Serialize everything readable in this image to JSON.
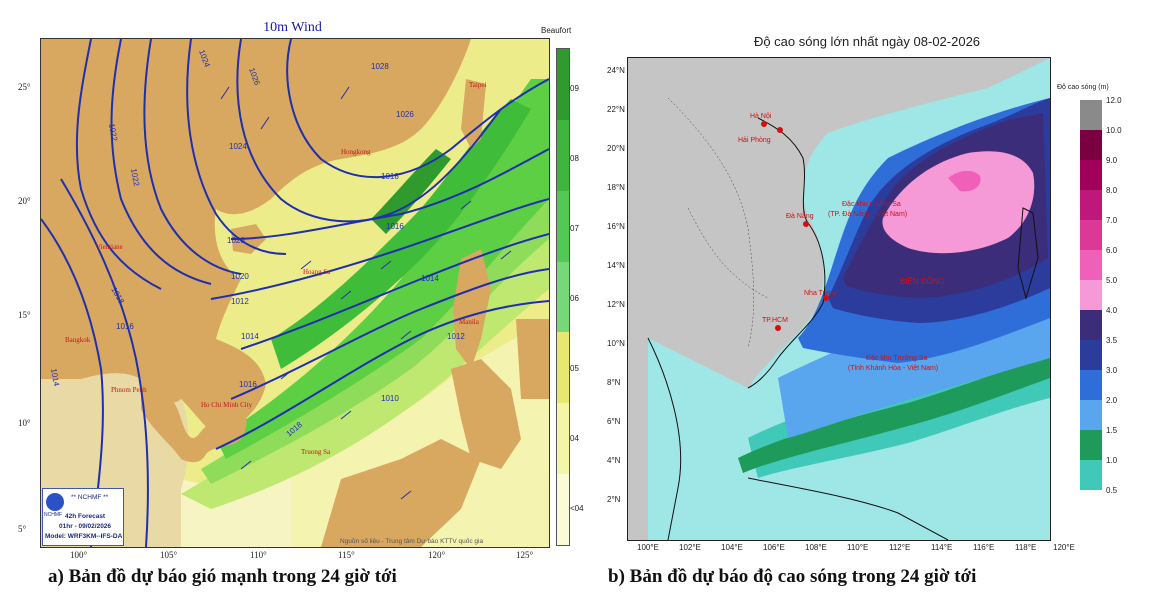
{
  "panel_a": {
    "title": "10m Wind",
    "caption": "a) Bản đồ dự báo gió mạnh trong 24 giờ tới",
    "legend_title": "Beaufort",
    "legend_labels": [
      "09",
      "08",
      "07",
      "06",
      "05",
      "04",
      "<04"
    ],
    "lat_labels": [
      "25°",
      "20°",
      "15°",
      "10°",
      "5°"
    ],
    "lon_labels": [
      "100°",
      "105°",
      "110°",
      "115°",
      "120°",
      "125°"
    ],
    "isobar_labels": [
      "1024",
      "1026",
      "1028",
      "1026",
      "1024",
      "1022",
      "1020",
      "1018",
      "1016",
      "1014",
      "1012",
      "1010",
      "1022",
      "1020",
      "1018",
      "1016",
      "1014",
      "1012",
      "1016",
      "1018",
      "1014"
    ],
    "place_labels": [
      "Hongkong",
      "Hoang Sa",
      "Manila",
      "Truong Sa",
      "Bangkok",
      "Phnom Penh",
      "Ho Chi Minh City",
      "Vientiane",
      "Taipei"
    ],
    "info": {
      "org": "** NCHMF **",
      "forecast": "42h Forecast",
      "time": "01hr - 09/02/2026",
      "model": "Model: WRF3KM--IFS-DA",
      "logo_text": "NCHMF"
    },
    "credit": "Nguồn số liệu - Trung tâm Dự báo KTTV quốc gia",
    "legend_colors": [
      "#2f9b2f",
      "#3fb43f",
      "#54c854",
      "#78d878",
      "#e8e870",
      "#f5f5a8",
      "#fbfbd8"
    ]
  },
  "panel_b": {
    "title": "Độ cao sóng lớn nhất ngày 08-02-2026",
    "caption": "b) Bản đồ dự báo độ cao sóng trong 24 giờ tới",
    "legend_title": "Độ cao sóng (m)",
    "lat_labels": [
      "24°N",
      "22°N",
      "20°N",
      "18°N",
      "16°N",
      "14°N",
      "12°N",
      "10°N",
      "8°N",
      "6°N",
      "4°N",
      "2°N"
    ],
    "lon_labels": [
      "100°E",
      "102°E",
      "104°E",
      "106°E",
      "108°E",
      "110°E",
      "112°E",
      "114°E",
      "116°E",
      "118°E",
      "120°E"
    ],
    "scale_labels": [
      "12.0",
      "10.0",
      "9.0",
      "8.0",
      "7.0",
      "6.0",
      "5.0",
      "4.0",
      "3.5",
      "3.0",
      "2.0",
      "1.5",
      "1.0",
      "0.5"
    ],
    "scale_colors": [
      "#8a8a8a",
      "#7a0040",
      "#a0005a",
      "#c0187a",
      "#dc3896",
      "#f060b8",
      "#f59ad6",
      "#3b2d7a",
      "#2c3c9c",
      "#2f6ed8",
      "#5aa6ee",
      "#1e9a5a",
      "#40c8b8",
      "#9fe6e6"
    ],
    "places": [
      "Hà Nội",
      "Hải Phòng",
      "Đà Nẵng",
      "Nha Trang",
      "TP.HCM",
      "Đặc khu Hoàng Sa",
      "(TP. Đà Nẵng - Việt Nam)",
      "BIỂN ĐÔNG",
      "Đặc khu Trường Sa",
      "(Tỉnh Khánh Hòa - Việt Nam)"
    ]
  }
}
